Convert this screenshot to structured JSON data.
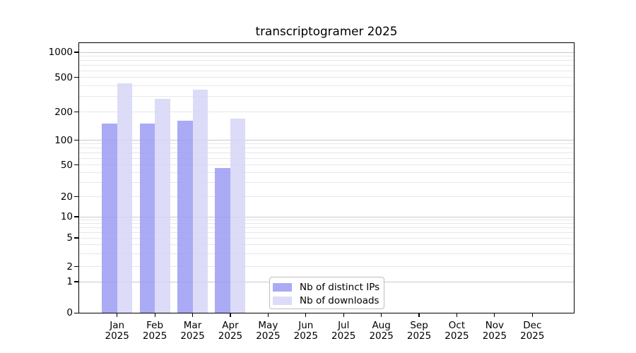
{
  "title": "transcriptogramer 2025",
  "legend": {
    "items": [
      {
        "label": "Nb of distinct IPs",
        "series": "ips"
      },
      {
        "label": "Nb of downloads",
        "series": "downloads"
      }
    ]
  },
  "x_axis": {
    "months": [
      "Jan",
      "Feb",
      "Mar",
      "Apr",
      "May",
      "Jun",
      "Jul",
      "Aug",
      "Sep",
      "Oct",
      "Nov",
      "Dec"
    ],
    "year": "2025"
  },
  "y_axis": {
    "tick_labels_top_to_bottom": [
      "1000",
      "500",
      "200",
      "100",
      "50",
      "20",
      "10",
      "5",
      "2",
      "1",
      "0"
    ]
  },
  "colors": {
    "ips_bar": "#aaaaf2",
    "downloads_bar": "#dcdcf8",
    "ips_bar_base": "#9b9bf3",
    "downloads_bar_base": "#d6d6f7",
    "major_gridline": "#c9c9c9",
    "minor_gridline": "#e7e7e7",
    "axis_line": "#000000",
    "legend_border": "#bdbdbd",
    "text": "#000000",
    "background": "#ffffff"
  },
  "chart_data": {
    "type": "bar",
    "title": "transcriptogramer 2025",
    "categories": [
      "Jan 2025",
      "Feb 2025",
      "Mar 2025",
      "Apr 2025",
      "May 2025",
      "Jun 2025",
      "Jul 2025",
      "Aug 2025",
      "Sep 2025",
      "Oct 2025",
      "Nov 2025",
      "Dec 2025"
    ],
    "series": [
      {
        "name": "Nb of distinct IPs",
        "values": [
          150,
          151,
          162,
          46,
          0,
          0,
          0,
          0,
          0,
          0,
          0,
          0
        ]
      },
      {
        "name": "Nb of downloads",
        "values": [
          430,
          285,
          360,
          170,
          0,
          0,
          0,
          0,
          0,
          0,
          0,
          0
        ]
      }
    ],
    "xlabel": "",
    "ylabel": "",
    "y_scale": "log-like (1-2-5 tick pattern with 0 baseline)",
    "y_ticks": [
      0,
      1,
      2,
      5,
      10,
      20,
      50,
      100,
      200,
      500,
      1000
    ],
    "ylim": [
      0,
      1000
    ],
    "grid": "horizontal major (decades) + minor (log subdivisions), no grid below 1",
    "legend_position": "inside, lower middle",
    "bar_layout": "two bars per month, touching; IPs left, downloads right"
  }
}
